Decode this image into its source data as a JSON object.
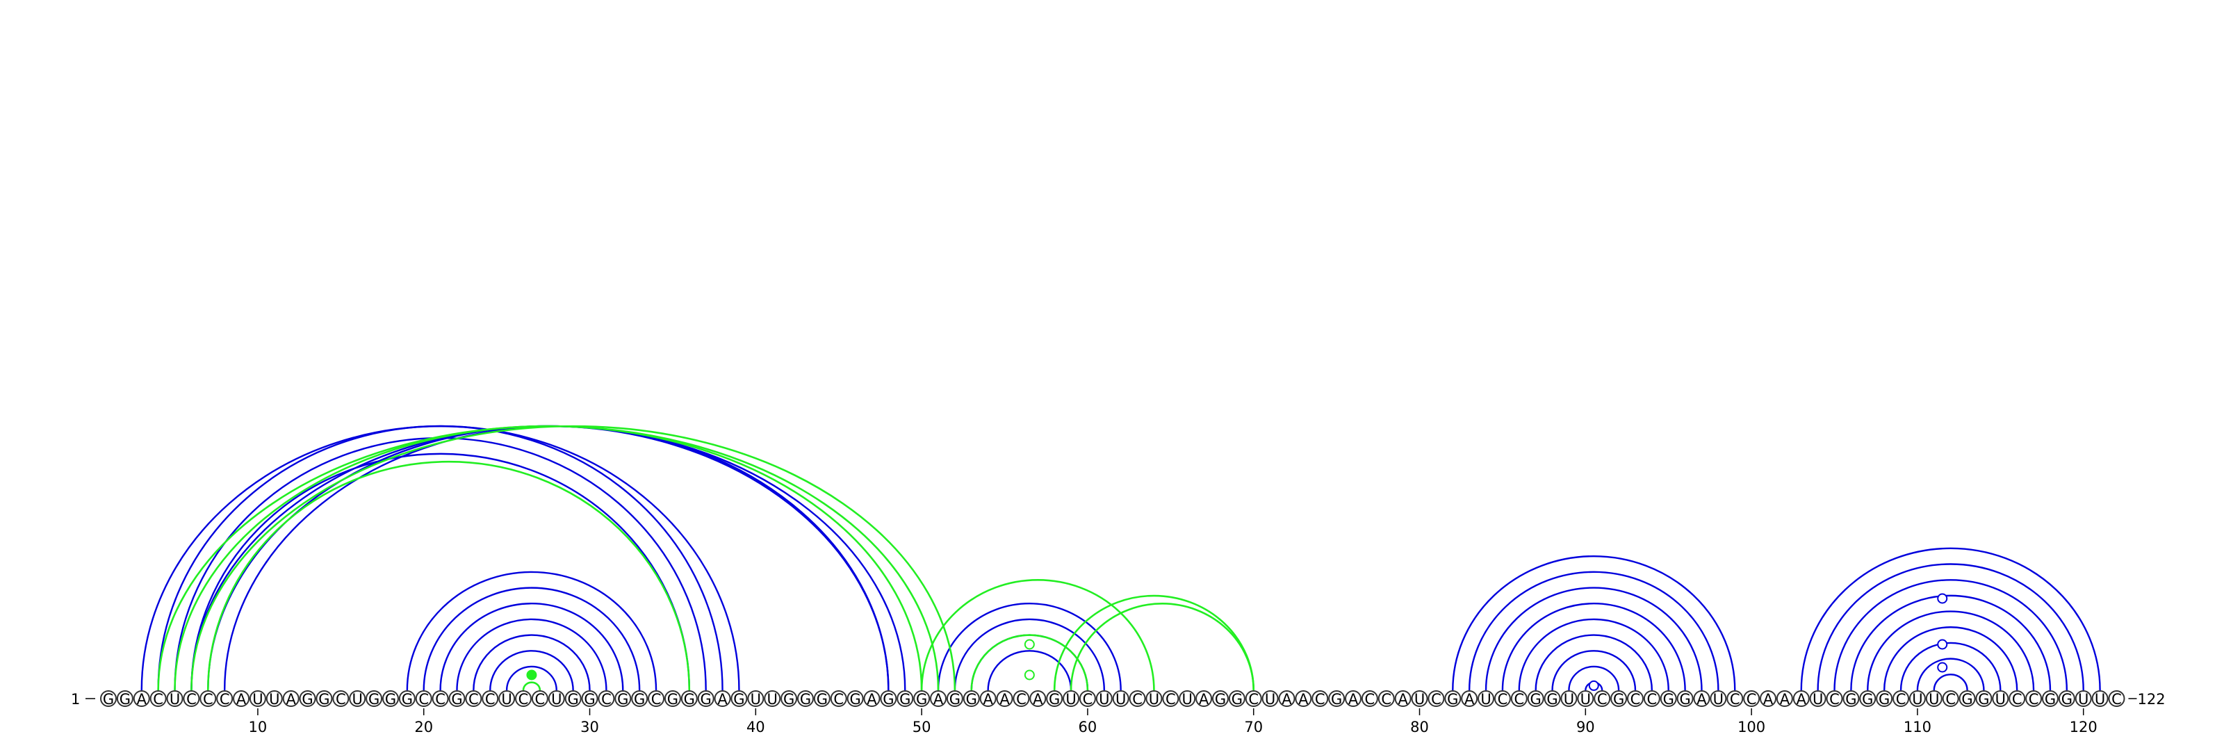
{
  "sequence": "GGACUCCCAUUAGGCUGGGCCGCCUCCUGGCGGCGGGAGUUGGGCGAGGGAGGAACAGUCUUCUCUAGGCUAACGACCAUCGAUCCGGUUCGCCGGAUCCAAAUCGGGCUUCGGUCCGGUUC",
  "start_label": "1",
  "end_label": "122",
  "ticks": [
    10,
    20,
    30,
    40,
    50,
    60,
    70,
    80,
    90,
    100,
    110,
    120
  ],
  "colors": {
    "blue": "#0000dd",
    "green": "#22ee22"
  },
  "arcs": {
    "blue": [
      [
        3,
        39
      ],
      [
        4,
        38
      ],
      [
        5,
        37
      ],
      [
        6,
        36
      ],
      [
        6,
        49
      ],
      [
        7,
        48
      ],
      [
        8,
        48
      ],
      [
        19,
        34
      ],
      [
        20,
        33
      ],
      [
        21,
        32
      ],
      [
        22,
        31
      ],
      [
        23,
        30
      ],
      [
        24,
        29
      ],
      [
        25,
        28
      ],
      [
        51,
        62
      ],
      [
        52,
        61
      ],
      [
        53,
        60
      ],
      [
        54,
        59
      ],
      [
        82,
        99
      ],
      [
        83,
        98
      ],
      [
        84,
        97
      ],
      [
        85,
        96
      ],
      [
        86,
        95
      ],
      [
        87,
        94
      ],
      [
        88,
        93
      ],
      [
        89,
        92
      ],
      [
        90,
        91
      ],
      [
        103,
        121
      ],
      [
        104,
        120
      ],
      [
        105,
        119
      ],
      [
        106,
        118
      ],
      [
        107,
        117
      ],
      [
        108,
        116
      ],
      [
        109,
        115
      ],
      [
        110,
        114
      ],
      [
        111,
        113
      ]
    ],
    "green": [
      [
        4,
        51
      ],
      [
        5,
        50
      ],
      [
        6,
        52
      ],
      [
        7,
        36
      ],
      [
        26,
        27
      ],
      [
        50,
        64
      ],
      [
        53,
        60
      ],
      [
        58,
        70
      ],
      [
        59,
        70
      ]
    ]
  },
  "pseudoknot_markers": [
    {
      "pos": 26.5,
      "level": 1,
      "color": "green",
      "filled": true
    },
    {
      "pos": 56.5,
      "level": 3,
      "color": "green",
      "filled": false
    },
    {
      "pos": 56.5,
      "level": 1,
      "color": "green",
      "filled": false
    },
    {
      "pos": 90.5,
      "level": 0.3,
      "color": "blue",
      "filled": false
    },
    {
      "pos": 111.5,
      "level": 6,
      "color": "blue",
      "filled": false
    },
    {
      "pos": 111.5,
      "level": 3,
      "color": "blue",
      "filled": false
    },
    {
      "pos": 111.5,
      "level": 1.5,
      "color": "blue",
      "filled": false
    }
  ]
}
